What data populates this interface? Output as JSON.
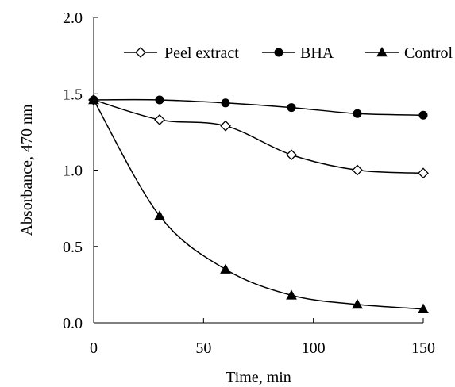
{
  "chart_data": {
    "type": "line",
    "title": "",
    "xlabel": "Time, min",
    "ylabel": "Absorbance, 470 nm",
    "xlim": [
      0,
      150
    ],
    "ylim": [
      0,
      2.0
    ],
    "x_ticks": [
      "0",
      "50",
      "100",
      "150"
    ],
    "x_tick_values": [
      0,
      50,
      100,
      150
    ],
    "y_ticks": [
      "0.0",
      "0.5",
      "1.0",
      "1.5",
      "2.0"
    ],
    "y_tick_values": [
      0,
      0.5,
      1.0,
      1.5,
      2.0
    ],
    "grid": false,
    "legend_position": "top",
    "x": [
      0,
      30,
      60,
      90,
      120,
      150
    ],
    "series": [
      {
        "name": "Peel extract",
        "marker": "diamond-open",
        "values": [
          1.46,
          1.33,
          1.29,
          1.1,
          1.0,
          0.98
        ]
      },
      {
        "name": "BHA",
        "marker": "circle-filled",
        "values": [
          1.46,
          1.46,
          1.44,
          1.41,
          1.37,
          1.36
        ]
      },
      {
        "name": "Control",
        "marker": "triangle-filled",
        "values": [
          1.46,
          0.7,
          0.35,
          0.18,
          0.12,
          0.09
        ]
      }
    ]
  }
}
